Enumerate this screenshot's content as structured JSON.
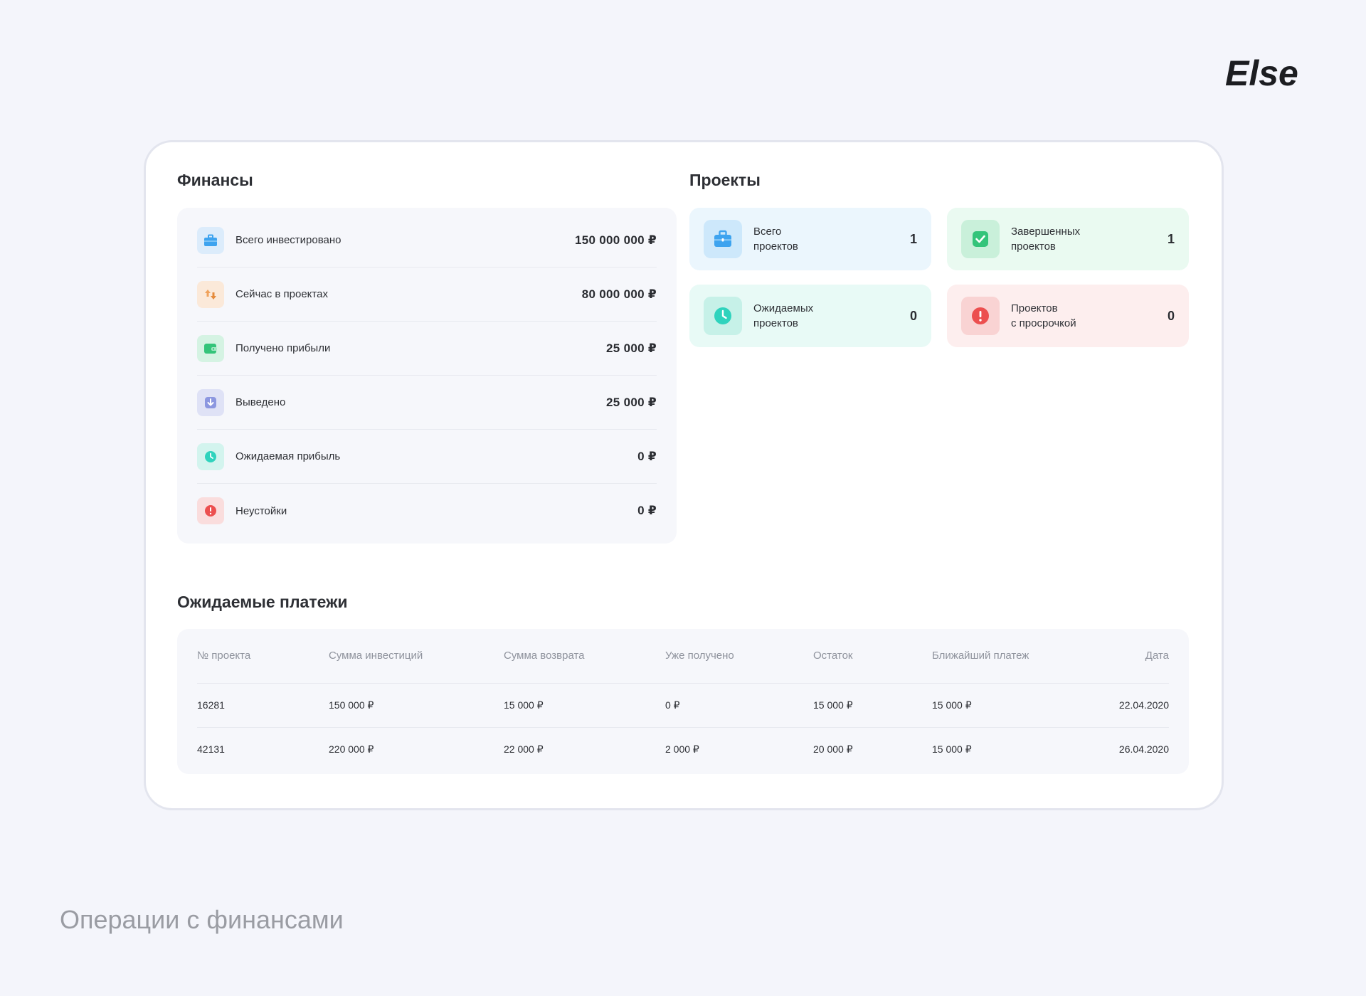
{
  "brand": {
    "logo_text": "Else"
  },
  "finances": {
    "title": "Финансы",
    "rows": [
      {
        "label": "Всего инвестировано",
        "value": "150 000 000 ₽",
        "icon": "briefcase-icon",
        "color": "#3da3ef"
      },
      {
        "label": "Сейчас в проектах",
        "value": "80 000 000 ₽",
        "icon": "transfer-icon",
        "color": "#f0a25c"
      },
      {
        "label": "Получено прибыли",
        "value": "25 000 ₽",
        "icon": "wallet-icon",
        "color": "#34c47a"
      },
      {
        "label": "Выведено",
        "value": "25 000 ₽",
        "icon": "download-icon",
        "color": "#8c97e0"
      },
      {
        "label": "Ожидаемая прибыль",
        "value": "0 ₽",
        "icon": "clock-icon",
        "color": "#2fd3bd"
      },
      {
        "label": "Неустойки",
        "value": "0 ₽",
        "icon": "alert-icon",
        "color": "#ec4f4f"
      }
    ]
  },
  "projects": {
    "title": "Проекты",
    "tiles": [
      {
        "line1": "Всего",
        "line2": "проектов",
        "count": "1",
        "icon": "briefcase-icon",
        "bg": "#ebf6fd"
      },
      {
        "line1": "Завершенных",
        "line2": "проектов",
        "count": "1",
        "icon": "check-icon",
        "bg": "#eafaf1"
      },
      {
        "line1": "Ожидаемых",
        "line2": "проектов",
        "count": "0",
        "icon": "clock-icon",
        "bg": "#e8faf6"
      },
      {
        "line1": "Проектов",
        "line2": "с просрочкой",
        "count": "0",
        "icon": "alert-icon",
        "bg": "#fdeeee"
      }
    ]
  },
  "payments": {
    "title": "Ожидаемые платежи",
    "columns": [
      "№ проекта",
      "Сумма инвестиций",
      "Сумма возврата",
      "Уже получено",
      "Остаток",
      "Ближайший платеж",
      "Дата"
    ],
    "rows": [
      [
        "16281",
        "150 000 ₽",
        "15 000 ₽",
        "0 ₽",
        "15 000 ₽",
        "15 000 ₽",
        "22.04.2020"
      ],
      [
        "42131",
        "220 000 ₽",
        "22 000 ₽",
        "2 000 ₽",
        "20 000 ₽",
        "15 000 ₽",
        "26.04.2020"
      ]
    ]
  },
  "footer": {
    "title": "Операции с финансами"
  }
}
